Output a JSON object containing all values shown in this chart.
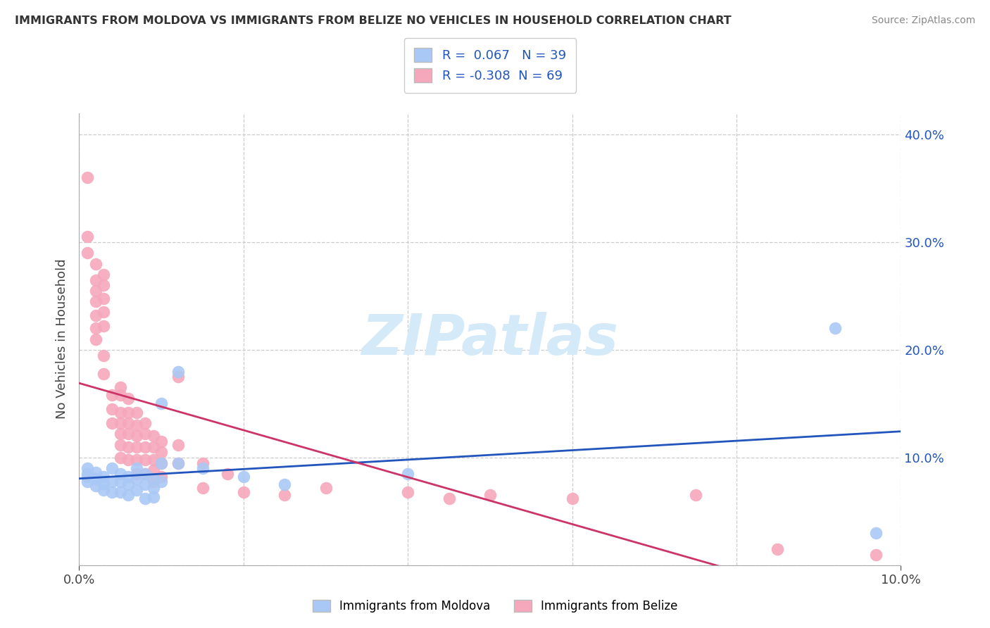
{
  "title": "IMMIGRANTS FROM MOLDOVA VS IMMIGRANTS FROM BELIZE NO VEHICLES IN HOUSEHOLD CORRELATION CHART",
  "source": "Source: ZipAtlas.com",
  "ylabel": "No Vehicles in Household",
  "legend_moldova": "Immigrants from Moldova",
  "legend_belize": "Immigrants from Belize",
  "R_moldova": 0.067,
  "N_moldova": 39,
  "R_belize": -0.308,
  "N_belize": 69,
  "moldova_color": "#aac8f5",
  "belize_color": "#f5a8bc",
  "moldova_line_color": "#2255bb",
  "belize_line_color": "#cc3366",
  "watermark_color": "#d5eaf8",
  "background_color": "#ffffff",
  "grid_color": "#cccccc",
  "xlim": [
    0.0,
    0.1
  ],
  "ylim": [
    0.0,
    0.42
  ],
  "moldova_x": [
    0.001,
    0.001,
    0.001,
    0.001,
    0.002,
    0.002,
    0.002,
    0.003,
    0.003,
    0.003,
    0.004,
    0.004,
    0.004,
    0.005,
    0.005,
    0.005,
    0.006,
    0.006,
    0.006,
    0.007,
    0.007,
    0.007,
    0.008,
    0.008,
    0.008,
    0.009,
    0.009,
    0.009,
    0.01,
    0.01,
    0.01,
    0.012,
    0.012,
    0.015,
    0.02,
    0.025,
    0.04,
    0.092,
    0.097
  ],
  "moldova_y": [
    0.085,
    0.09,
    0.082,
    0.078,
    0.086,
    0.08,
    0.074,
    0.082,
    0.076,
    0.07,
    0.09,
    0.078,
    0.068,
    0.085,
    0.078,
    0.068,
    0.082,
    0.075,
    0.065,
    0.09,
    0.08,
    0.07,
    0.085,
    0.075,
    0.062,
    0.08,
    0.072,
    0.063,
    0.15,
    0.095,
    0.078,
    0.18,
    0.095,
    0.09,
    0.082,
    0.075,
    0.085,
    0.22,
    0.03
  ],
  "belize_x": [
    0.001,
    0.001,
    0.001,
    0.002,
    0.002,
    0.002,
    0.002,
    0.002,
    0.002,
    0.002,
    0.003,
    0.003,
    0.003,
    0.003,
    0.003,
    0.003,
    0.003,
    0.004,
    0.004,
    0.004,
    0.005,
    0.005,
    0.005,
    0.005,
    0.005,
    0.005,
    0.005,
    0.006,
    0.006,
    0.006,
    0.006,
    0.006,
    0.006,
    0.007,
    0.007,
    0.007,
    0.007,
    0.007,
    0.007,
    0.008,
    0.008,
    0.008,
    0.008,
    0.008,
    0.009,
    0.009,
    0.009,
    0.009,
    0.009,
    0.01,
    0.01,
    0.01,
    0.01,
    0.012,
    0.012,
    0.012,
    0.015,
    0.015,
    0.018,
    0.02,
    0.025,
    0.03,
    0.04,
    0.045,
    0.05,
    0.06,
    0.075,
    0.085,
    0.097
  ],
  "belize_y": [
    0.36,
    0.305,
    0.29,
    0.28,
    0.265,
    0.255,
    0.245,
    0.232,
    0.22,
    0.21,
    0.27,
    0.26,
    0.248,
    0.235,
    0.222,
    0.195,
    0.178,
    0.158,
    0.145,
    0.132,
    0.165,
    0.158,
    0.142,
    0.132,
    0.122,
    0.112,
    0.1,
    0.155,
    0.142,
    0.132,
    0.122,
    0.11,
    0.098,
    0.142,
    0.13,
    0.12,
    0.11,
    0.098,
    0.085,
    0.132,
    0.122,
    0.11,
    0.098,
    0.085,
    0.12,
    0.11,
    0.098,
    0.088,
    0.078,
    0.115,
    0.105,
    0.095,
    0.082,
    0.175,
    0.112,
    0.095,
    0.095,
    0.072,
    0.085,
    0.068,
    0.065,
    0.072,
    0.068,
    0.062,
    0.065,
    0.062,
    0.065,
    0.015,
    0.01
  ]
}
